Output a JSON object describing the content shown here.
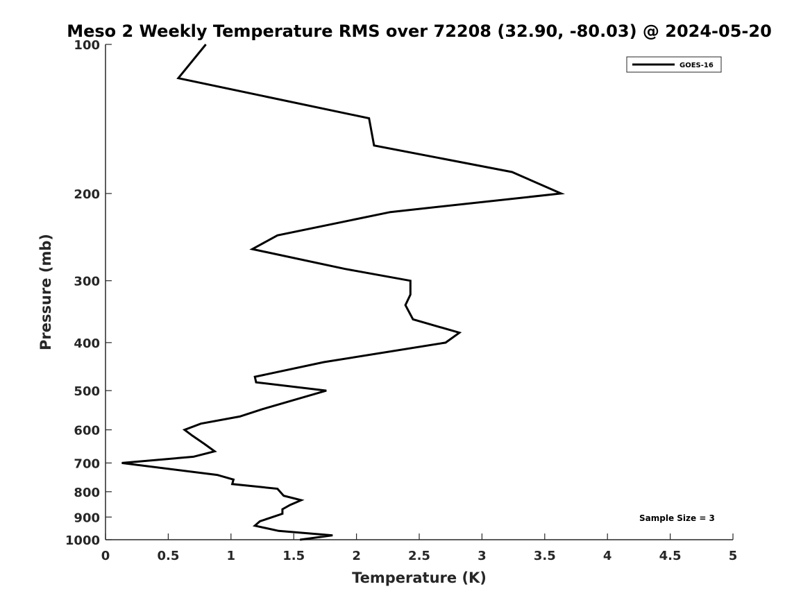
{
  "chart_data": {
    "type": "line",
    "title": "Meso 2 Weekly Temperature RMS over 72208 (32.90, -80.03) @ 2024-05-20",
    "xlabel": "Temperature (K)",
    "ylabel": "Pressure (mb)",
    "xlim": [
      0,
      5
    ],
    "ylim": [
      100,
      1000
    ],
    "y_scale": "log",
    "y_reversed": true,
    "x_ticks": [
      "0",
      "0.5",
      "1",
      "1.5",
      "2",
      "2.5",
      "3",
      "3.5",
      "4",
      "4.5",
      "5"
    ],
    "y_ticks": [
      "100",
      "200",
      "300",
      "400",
      "500",
      "600",
      "700",
      "800",
      "900",
      "1000"
    ],
    "grid": false,
    "legend": {
      "location": "top-right",
      "entries": [
        "GOES-16"
      ]
    },
    "annotation": "Sample Size = 3",
    "series": [
      {
        "name": "GOES-16",
        "color": "#000000",
        "points": [
          [
            0.8,
            100
          ],
          [
            0.58,
            117
          ],
          [
            2.1,
            141
          ],
          [
            2.14,
            160
          ],
          [
            3.24,
            181
          ],
          [
            3.63,
            200
          ],
          [
            2.27,
            218
          ],
          [
            1.37,
            243
          ],
          [
            1.17,
            259
          ],
          [
            1.91,
            284
          ],
          [
            2.43,
            300
          ],
          [
            2.43,
            320
          ],
          [
            2.39,
            336
          ],
          [
            2.45,
            359
          ],
          [
            2.82,
            382
          ],
          [
            2.71,
            400
          ],
          [
            1.74,
            438
          ],
          [
            1.19,
            469
          ],
          [
            1.2,
            481
          ],
          [
            1.76,
            500
          ],
          [
            1.25,
            545
          ],
          [
            1.07,
            564
          ],
          [
            0.76,
            583
          ],
          [
            0.63,
            600
          ],
          [
            0.69,
            616
          ],
          [
            0.79,
            641
          ],
          [
            0.87,
            663
          ],
          [
            0.7,
            680
          ],
          [
            0.13,
            700
          ],
          [
            0.89,
            740
          ],
          [
            1.02,
            756
          ],
          [
            1.01,
            772
          ],
          [
            1.37,
            789
          ],
          [
            1.42,
            815
          ],
          [
            1.56,
            832
          ],
          [
            1.47,
            851
          ],
          [
            1.41,
            868
          ],
          [
            1.41,
            886
          ],
          [
            1.23,
            918
          ],
          [
            1.19,
            937
          ],
          [
            1.38,
            960
          ],
          [
            1.81,
            980
          ],
          [
            1.55,
            1000
          ]
        ]
      }
    ]
  }
}
